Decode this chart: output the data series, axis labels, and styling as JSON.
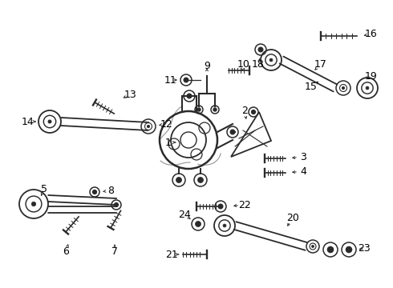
{
  "background_color": "#ffffff",
  "line_color": "#2a2a2a",
  "label_color": "#000000",
  "font_size": 9,
  "fig_w": 4.9,
  "fig_h": 3.6,
  "dpi": 100
}
